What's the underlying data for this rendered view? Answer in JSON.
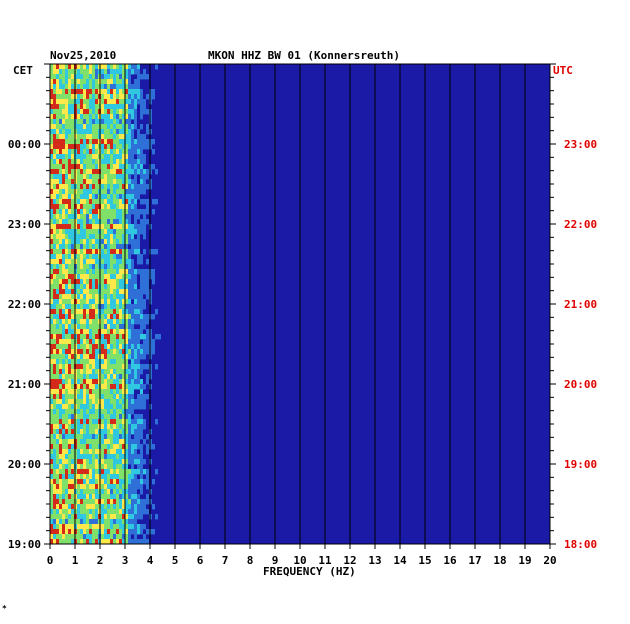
{
  "header": {
    "date": "Nov25,2010",
    "station": "MKON HHZ BW 01 (Konnersreuth)"
  },
  "footer": {
    "mark": "*"
  },
  "colors": {
    "background": "#1a1aa6",
    "low": "#1a2fb8",
    "mid": "#2fc8e0",
    "high": "#ffe84a",
    "peak": "#d42a1a",
    "grid": "#000000",
    "utc_label": "#e00000"
  },
  "chart_data": {
    "type": "heatmap",
    "title": "MKON HHZ BW 01 (Konnersreuth)",
    "subtitle": "Nov25,2010",
    "xlabel": "FREQUENCY (HZ)",
    "xlim": [
      0,
      20
    ],
    "x_ticks": [
      "0",
      "1",
      "2",
      "3",
      "4",
      "5",
      "6",
      "7",
      "8",
      "9",
      "10",
      "11",
      "12",
      "13",
      "14",
      "15",
      "16",
      "17",
      "18",
      "19",
      "20"
    ],
    "left_axis": {
      "label": "CET",
      "ticks": [
        {
          "label": "00:00",
          "hour": 0
        },
        {
          "label": "23:00",
          "hour": -1
        },
        {
          "label": "22:00",
          "hour": -2
        },
        {
          "label": "21:00",
          "hour": -3
        },
        {
          "label": "20:00",
          "hour": -4
        },
        {
          "label": "19:00",
          "hour": -5
        }
      ]
    },
    "right_axis": {
      "label": "UTC",
      "ticks": [
        {
          "label": "23:00",
          "hour": 23
        },
        {
          "label": "22:00",
          "hour": 22
        },
        {
          "label": "21:00",
          "hour": 21
        },
        {
          "label": "20:00",
          "hour": 20
        },
        {
          "label": "19:00",
          "hour": 19
        },
        {
          "label": "18:00",
          "hour": 18
        }
      ]
    },
    "time_range_utc_hours": [
      18,
      24
    ],
    "energy_band_hz": [
      0,
      3
    ],
    "grid": true
  }
}
